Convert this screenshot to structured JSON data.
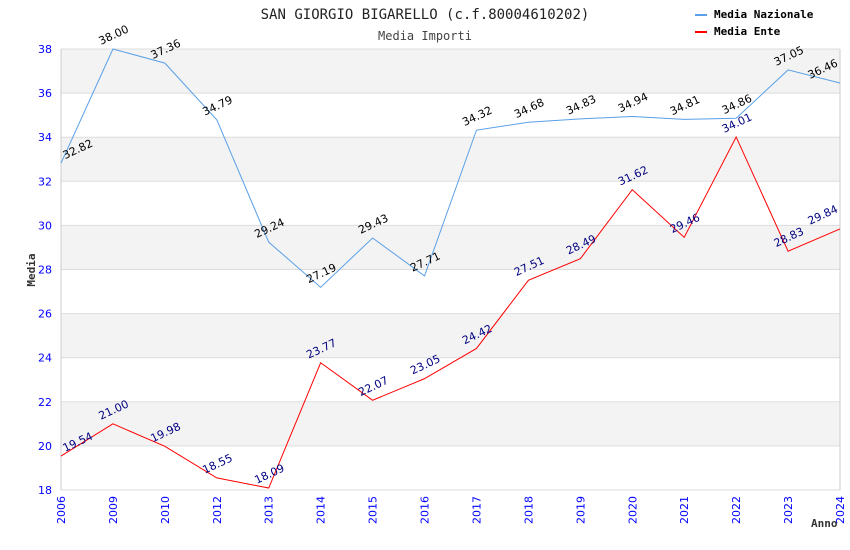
{
  "chart_data": {
    "type": "line",
    "title": "SAN GIORGIO BIGARELLO (c.f.80004610202)",
    "subtitle": "Media Importi",
    "xlabel": "Anno",
    "ylabel": "Media",
    "ylim": [
      18,
      38
    ],
    "yticks": [
      18,
      20,
      22,
      24,
      26,
      28,
      30,
      32,
      34,
      36,
      38
    ],
    "categories": [
      "2006",
      "2009",
      "2010",
      "2012",
      "2013",
      "2014",
      "2015",
      "2016",
      "2017",
      "2018",
      "2019",
      "2020",
      "2021",
      "2022",
      "2023",
      "2024"
    ],
    "legend_position": "top-right",
    "series": [
      {
        "name": "Media Nazionale",
        "color": "#5aa0e8",
        "label_color": "#000000",
        "values": [
          32.82,
          38.0,
          37.36,
          34.79,
          29.24,
          27.19,
          29.43,
          27.71,
          34.32,
          34.68,
          34.83,
          34.94,
          34.81,
          34.86,
          37.05,
          36.46
        ]
      },
      {
        "name": "Media Ente",
        "color": "#ff0000",
        "label_color": "#000080",
        "values": [
          19.54,
          21.0,
          19.98,
          18.55,
          18.09,
          23.77,
          22.07,
          23.05,
          24.42,
          27.51,
          28.49,
          31.62,
          29.46,
          34.01,
          28.83,
          29.84
        ]
      }
    ]
  }
}
